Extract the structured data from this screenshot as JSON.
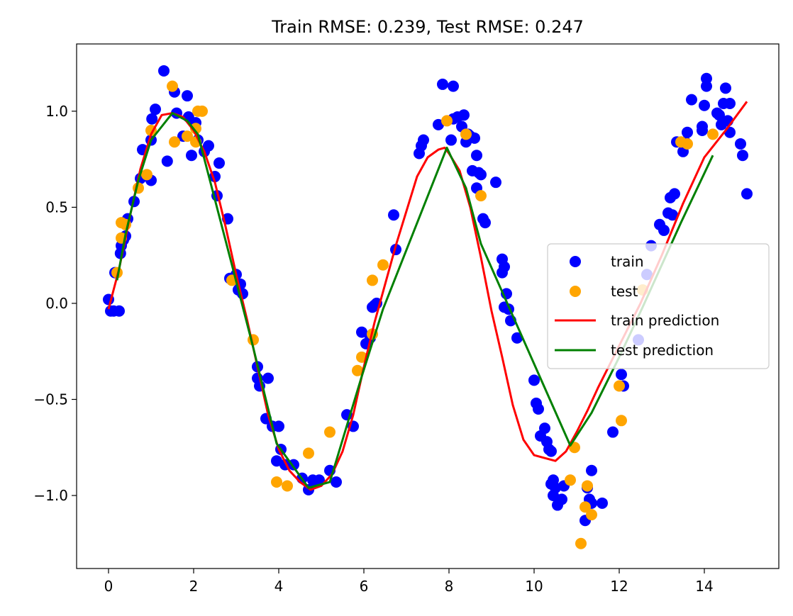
{
  "chart_data": {
    "type": "scatter",
    "title": "Train RMSE: 0.239, Test RMSE: 0.247",
    "xlabel": "",
    "ylabel": "",
    "xlim": [
      -0.75,
      15.75
    ],
    "ylim": [
      -1.38,
      1.35
    ],
    "xticks": [
      0,
      2,
      4,
      6,
      8,
      10,
      12,
      14
    ],
    "xtick_labels": [
      "0",
      "2",
      "4",
      "6",
      "8",
      "10",
      "12",
      "14"
    ],
    "yticks": [
      -1.0,
      -0.5,
      0.0,
      0.5,
      1.0
    ],
    "ytick_labels": [
      "−1.0",
      "−0.5",
      "0.0",
      "0.5",
      "1.0"
    ],
    "grid": false,
    "legend_position": "center-right",
    "series": [
      {
        "name": "train",
        "kind": "scatter",
        "color": "#0000ff",
        "points": [
          [
            0.0,
            0.02
          ],
          [
            0.05,
            -0.04
          ],
          [
            0.12,
            -0.04
          ],
          [
            0.15,
            0.16
          ],
          [
            0.25,
            -0.04
          ],
          [
            0.28,
            0.26
          ],
          [
            0.3,
            0.3
          ],
          [
            0.35,
            0.33
          ],
          [
            0.4,
            0.35
          ],
          [
            0.45,
            0.44
          ],
          [
            0.6,
            0.53
          ],
          [
            0.75,
            0.65
          ],
          [
            0.8,
            0.8
          ],
          [
            1.0,
            0.64
          ],
          [
            1.0,
            0.85
          ],
          [
            1.02,
            0.96
          ],
          [
            1.1,
            1.01
          ],
          [
            1.3,
            1.21
          ],
          [
            1.38,
            0.74
          ],
          [
            1.55,
            1.1
          ],
          [
            1.6,
            0.99
          ],
          [
            1.75,
            0.87
          ],
          [
            1.85,
            1.08
          ],
          [
            1.88,
            0.97
          ],
          [
            1.95,
            0.77
          ],
          [
            2.05,
            0.94
          ],
          [
            2.1,
            0.85
          ],
          [
            2.25,
            0.79
          ],
          [
            2.35,
            0.82
          ],
          [
            2.5,
            0.66
          ],
          [
            2.55,
            0.56
          ],
          [
            2.6,
            0.73
          ],
          [
            2.8,
            0.44
          ],
          [
            2.85,
            0.13
          ],
          [
            3.0,
            0.15
          ],
          [
            3.05,
            0.07
          ],
          [
            3.1,
            0.1
          ],
          [
            3.15,
            0.05
          ],
          [
            3.5,
            -0.33
          ],
          [
            3.5,
            -0.39
          ],
          [
            3.55,
            -0.43
          ],
          [
            3.7,
            -0.6
          ],
          [
            3.75,
            -0.39
          ],
          [
            3.85,
            -0.64
          ],
          [
            3.95,
            -0.82
          ],
          [
            4.0,
            -0.64
          ],
          [
            4.05,
            -0.76
          ],
          [
            4.15,
            -0.84
          ],
          [
            4.35,
            -0.84
          ],
          [
            4.55,
            -0.91
          ],
          [
            4.7,
            -0.97
          ],
          [
            4.8,
            -0.92
          ],
          [
            4.95,
            -0.92
          ],
          [
            5.2,
            -0.87
          ],
          [
            5.35,
            -0.93
          ],
          [
            5.6,
            -0.58
          ],
          [
            5.75,
            -0.64
          ],
          [
            5.95,
            -0.15
          ],
          [
            6.05,
            -0.21
          ],
          [
            6.15,
            -0.18
          ],
          [
            6.2,
            -0.02
          ],
          [
            6.25,
            -0.01
          ],
          [
            6.3,
            0.0
          ],
          [
            6.7,
            0.46
          ],
          [
            6.75,
            0.28
          ],
          [
            7.3,
            0.78
          ],
          [
            7.35,
            0.82
          ],
          [
            7.4,
            0.85
          ],
          [
            7.75,
            0.93
          ],
          [
            7.85,
            1.14
          ],
          [
            8.05,
            0.85
          ],
          [
            8.1,
            1.13
          ],
          [
            8.1,
            0.96
          ],
          [
            8.2,
            0.97
          ],
          [
            8.3,
            0.92
          ],
          [
            8.35,
            0.98
          ],
          [
            8.4,
            0.84
          ],
          [
            8.45,
            0.88
          ],
          [
            8.5,
            0.87
          ],
          [
            8.55,
            0.69
          ],
          [
            8.6,
            0.86
          ],
          [
            8.65,
            0.6
          ],
          [
            8.65,
            0.77
          ],
          [
            8.7,
            0.68
          ],
          [
            8.75,
            0.67
          ],
          [
            8.8,
            0.44
          ],
          [
            8.85,
            0.42
          ],
          [
            9.1,
            0.63
          ],
          [
            9.25,
            0.23
          ],
          [
            9.25,
            0.16
          ],
          [
            9.3,
            0.19
          ],
          [
            9.3,
            -0.02
          ],
          [
            9.35,
            0.05
          ],
          [
            9.4,
            -0.03
          ],
          [
            9.45,
            -0.09
          ],
          [
            9.6,
            -0.18
          ],
          [
            10.0,
            -0.4
          ],
          [
            10.05,
            -0.52
          ],
          [
            10.1,
            -0.55
          ],
          [
            10.15,
            -0.69
          ],
          [
            10.25,
            -0.65
          ],
          [
            10.3,
            -0.72
          ],
          [
            10.35,
            -0.76
          ],
          [
            10.4,
            -0.77
          ],
          [
            10.4,
            -0.94
          ],
          [
            10.45,
            -0.92
          ],
          [
            10.45,
            -1.0
          ],
          [
            10.5,
            -0.96
          ],
          [
            10.55,
            -1.05
          ],
          [
            10.65,
            -1.02
          ],
          [
            10.7,
            -0.95
          ],
          [
            11.2,
            -1.13
          ],
          [
            11.25,
            -0.96
          ],
          [
            11.3,
            -1.02
          ],
          [
            11.35,
            -0.87
          ],
          [
            11.35,
            -1.04
          ],
          [
            11.6,
            -1.04
          ],
          [
            11.85,
            -0.67
          ],
          [
            12.05,
            -0.37
          ],
          [
            12.1,
            -0.43
          ],
          [
            12.45,
            -0.19
          ],
          [
            12.65,
            0.15
          ],
          [
            12.75,
            0.3
          ],
          [
            12.95,
            0.41
          ],
          [
            13.05,
            0.38
          ],
          [
            13.15,
            0.47
          ],
          [
            13.2,
            0.55
          ],
          [
            13.25,
            0.46
          ],
          [
            13.3,
            0.57
          ],
          [
            13.35,
            0.84
          ],
          [
            13.5,
            0.79
          ],
          [
            13.55,
            0.84
          ],
          [
            13.6,
            0.89
          ],
          [
            13.7,
            1.06
          ],
          [
            13.95,
            0.9
          ],
          [
            13.95,
            0.92
          ],
          [
            14.0,
            1.03
          ],
          [
            14.05,
            1.13
          ],
          [
            14.05,
            1.17
          ],
          [
            14.3,
            0.99
          ],
          [
            14.35,
            0.98
          ],
          [
            14.4,
            0.93
          ],
          [
            14.45,
            1.04
          ],
          [
            14.5,
            1.12
          ],
          [
            14.55,
            0.95
          ],
          [
            14.6,
            0.89
          ],
          [
            14.6,
            1.04
          ],
          [
            14.85,
            0.83
          ],
          [
            14.9,
            0.77
          ],
          [
            15.0,
            0.57
          ]
        ]
      },
      {
        "name": "test",
        "kind": "scatter",
        "color": "#ffa500",
        "points": [
          [
            0.2,
            0.16
          ],
          [
            0.3,
            0.42
          ],
          [
            0.3,
            0.34
          ],
          [
            0.4,
            0.41
          ],
          [
            0.7,
            0.6
          ],
          [
            0.9,
            0.67
          ],
          [
            1.0,
            0.9
          ],
          [
            1.5,
            1.13
          ],
          [
            1.55,
            0.84
          ],
          [
            1.85,
            0.87
          ],
          [
            2.05,
            0.91
          ],
          [
            2.05,
            0.84
          ],
          [
            2.1,
            1.0
          ],
          [
            2.2,
            1.0
          ],
          [
            2.9,
            0.12
          ],
          [
            3.4,
            -0.19
          ],
          [
            3.95,
            -0.93
          ],
          [
            4.2,
            -0.95
          ],
          [
            4.7,
            -0.78
          ],
          [
            5.2,
            -0.67
          ],
          [
            5.85,
            -0.35
          ],
          [
            5.95,
            -0.28
          ],
          [
            6.2,
            0.12
          ],
          [
            6.2,
            -0.16
          ],
          [
            6.45,
            0.2
          ],
          [
            7.95,
            0.95
          ],
          [
            8.4,
            0.88
          ],
          [
            8.75,
            0.56
          ],
          [
            10.95,
            -0.75
          ],
          [
            10.85,
            -0.92
          ],
          [
            11.1,
            -1.25
          ],
          [
            11.2,
            -1.06
          ],
          [
            11.25,
            -0.95
          ],
          [
            11.35,
            -1.1
          ],
          [
            12.0,
            -0.43
          ],
          [
            12.05,
            -0.61
          ],
          [
            12.55,
            0.07
          ],
          [
            13.45,
            0.84
          ],
          [
            13.6,
            0.83
          ],
          [
            14.2,
            0.88
          ]
        ]
      },
      {
        "name": "train prediction",
        "kind": "line",
        "color": "#ff0000",
        "points": [
          [
            0.0,
            -0.03
          ],
          [
            0.25,
            0.18
          ],
          [
            0.5,
            0.45
          ],
          [
            0.75,
            0.7
          ],
          [
            1.0,
            0.88
          ],
          [
            1.25,
            0.98
          ],
          [
            1.5,
            0.99
          ],
          [
            1.75,
            0.97
          ],
          [
            2.0,
            0.9
          ],
          [
            2.25,
            0.79
          ],
          [
            2.5,
            0.63
          ],
          [
            2.75,
            0.4
          ],
          [
            3.0,
            0.15
          ],
          [
            3.25,
            -0.08
          ],
          [
            3.5,
            -0.33
          ],
          [
            3.75,
            -0.58
          ],
          [
            4.0,
            -0.76
          ],
          [
            4.25,
            -0.87
          ],
          [
            4.5,
            -0.93
          ],
          [
            4.75,
            -0.97
          ],
          [
            5.0,
            -0.95
          ],
          [
            5.25,
            -0.89
          ],
          [
            5.5,
            -0.77
          ],
          [
            5.75,
            -0.58
          ],
          [
            6.0,
            -0.33
          ],
          [
            6.25,
            -0.1
          ],
          [
            6.5,
            0.1
          ],
          [
            6.75,
            0.3
          ],
          [
            7.0,
            0.48
          ],
          [
            7.25,
            0.66
          ],
          [
            7.5,
            0.76
          ],
          [
            7.75,
            0.8
          ],
          [
            7.9,
            0.81
          ],
          [
            8.0,
            0.78
          ],
          [
            8.25,
            0.69
          ],
          [
            8.5,
            0.5
          ],
          [
            8.75,
            0.24
          ],
          [
            9.0,
            -0.04
          ],
          [
            9.25,
            -0.28
          ],
          [
            9.5,
            -0.53
          ],
          [
            9.75,
            -0.71
          ],
          [
            10.0,
            -0.79
          ],
          [
            10.5,
            -0.82
          ],
          [
            10.75,
            -0.77
          ],
          [
            11.0,
            -0.67
          ],
          [
            11.25,
            -0.56
          ],
          [
            11.5,
            -0.44
          ],
          [
            12.0,
            -0.22
          ],
          [
            12.5,
            0.0
          ],
          [
            13.0,
            0.25
          ],
          [
            13.5,
            0.52
          ],
          [
            14.0,
            0.76
          ],
          [
            14.5,
            0.9
          ],
          [
            15.0,
            1.05
          ]
        ]
      },
      {
        "name": "test prediction",
        "kind": "line",
        "color": "#008000",
        "points": [
          [
            0.2,
            0.12
          ],
          [
            0.4,
            0.36
          ],
          [
            0.7,
            0.64
          ],
          [
            1.0,
            0.85
          ],
          [
            1.5,
            0.99
          ],
          [
            1.85,
            0.95
          ],
          [
            2.1,
            0.88
          ],
          [
            2.9,
            0.2
          ],
          [
            3.4,
            -0.23
          ],
          [
            3.95,
            -0.73
          ],
          [
            4.7,
            -0.96
          ],
          [
            5.2,
            -0.93
          ],
          [
            5.95,
            -0.38
          ],
          [
            6.45,
            -0.03
          ],
          [
            7.95,
            0.81
          ],
          [
            8.4,
            0.6
          ],
          [
            8.75,
            0.31
          ],
          [
            10.85,
            -0.74
          ],
          [
            11.35,
            -0.57
          ],
          [
            12.0,
            -0.28
          ],
          [
            12.55,
            -0.02
          ],
          [
            13.45,
            0.42
          ],
          [
            14.2,
            0.77
          ]
        ]
      }
    ]
  }
}
